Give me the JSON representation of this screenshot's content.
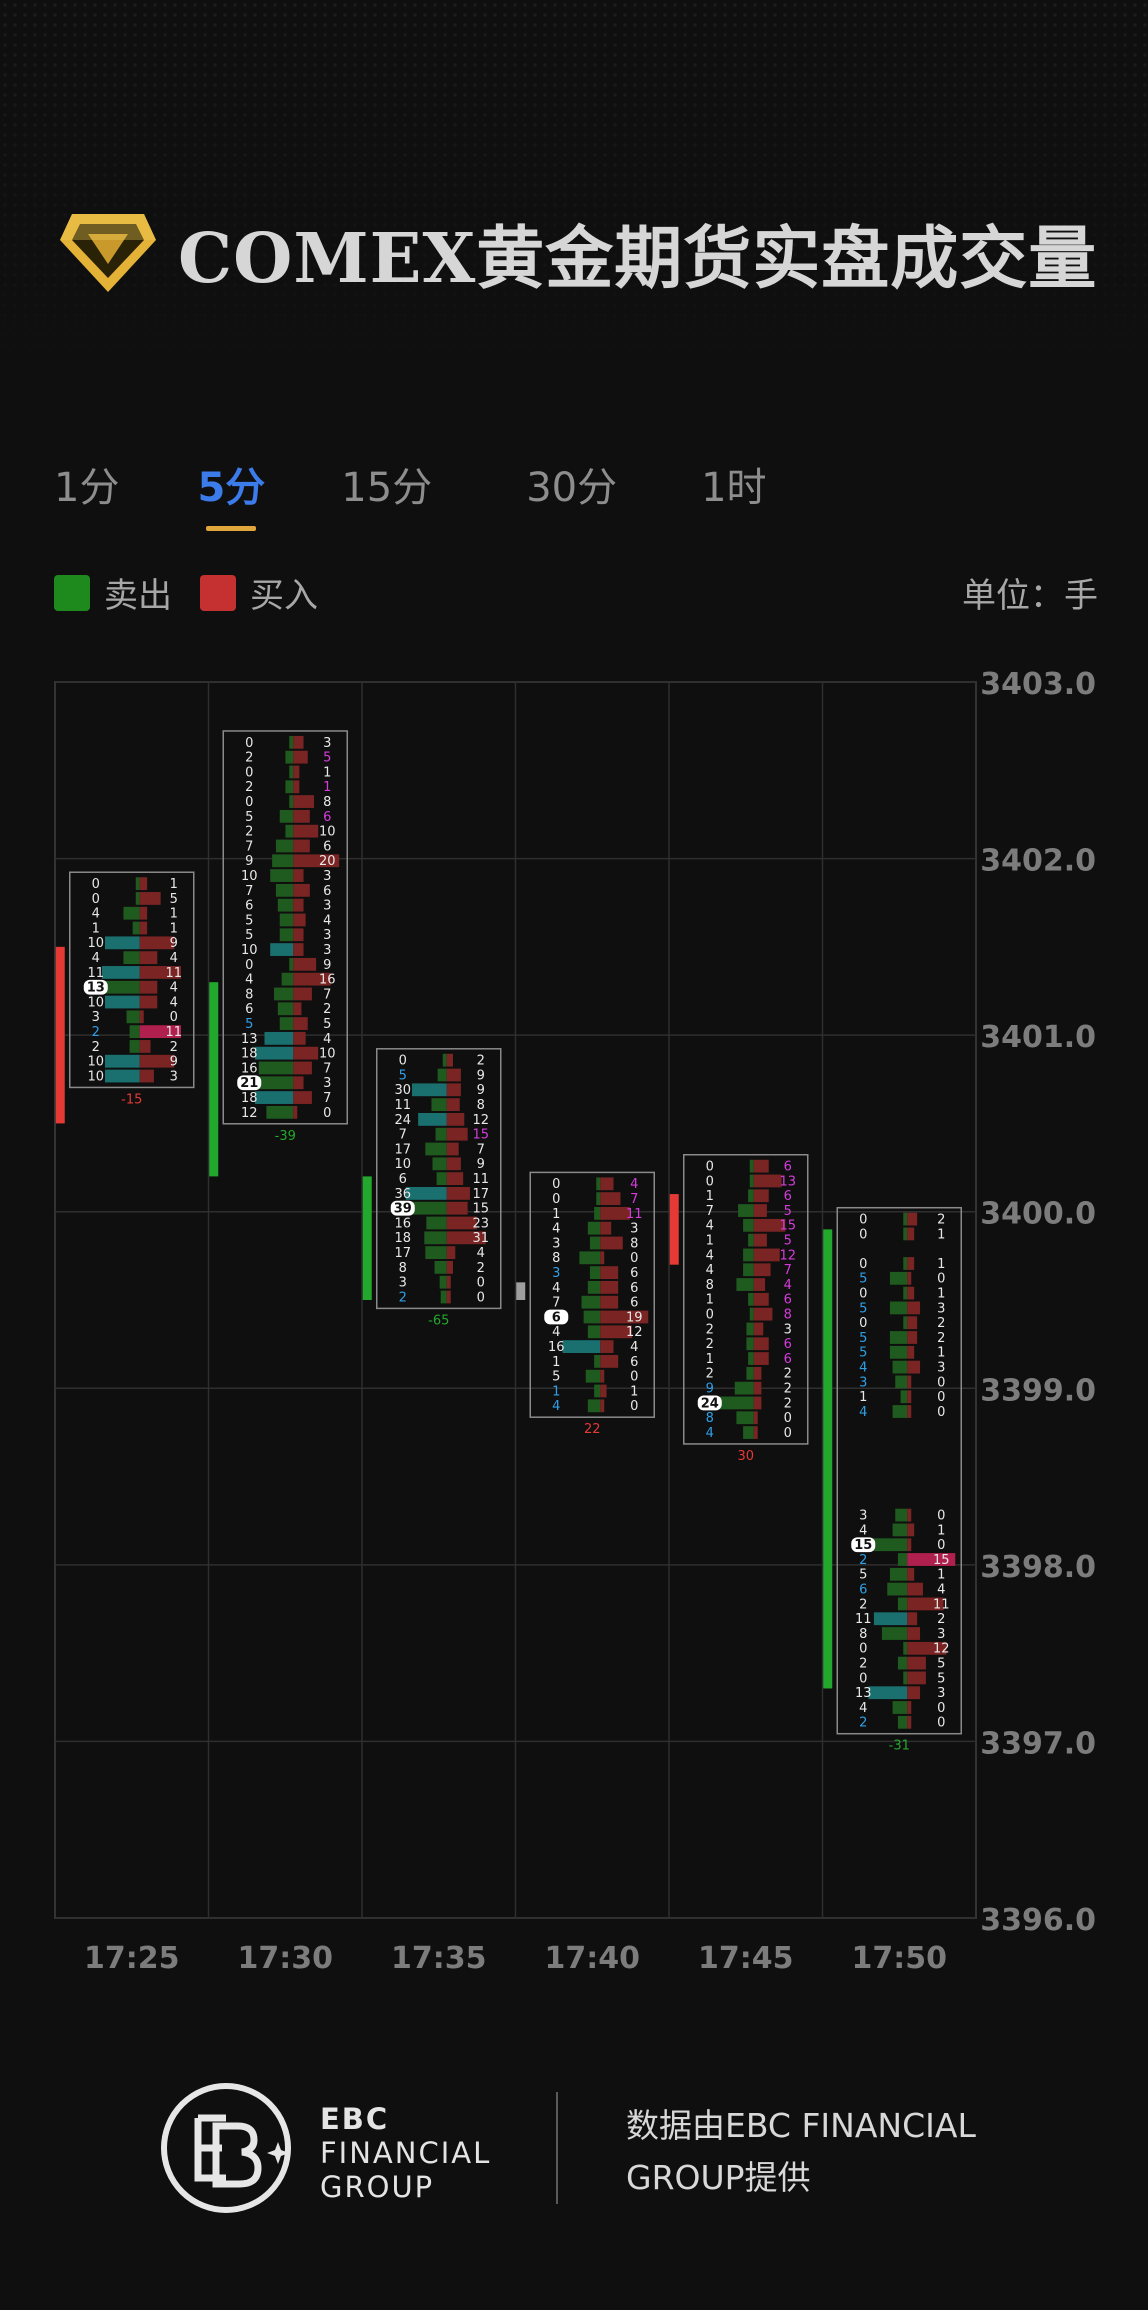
{
  "header": {
    "title": "COMEX黄金期货实盘成交量",
    "logo_icon": "gold-diamond-logo"
  },
  "tabs": [
    {
      "label": "1分",
      "active": false
    },
    {
      "label": "5分",
      "active": true
    },
    {
      "label": "15分",
      "active": false
    },
    {
      "label": "30分",
      "active": false
    },
    {
      "label": "1时",
      "active": false
    }
  ],
  "legend": {
    "sell": {
      "label": "卖出",
      "color": "#1e8a1e"
    },
    "buy": {
      "label": "买入",
      "color": "#c53030"
    },
    "unit": "单位：手"
  },
  "colors": {
    "sell_bar": "#1f5a1f",
    "buy_bar": "#7a2424",
    "highlight_blue": "#2f9fe8",
    "highlight_magenta": "#d63cdc",
    "highlight_teal": "#1a6f6f",
    "highlight_crimson": "#b0204e",
    "candle_up": "#22a82c",
    "candle_down": "#e53935",
    "candle_neutral": "#9e9e9e"
  },
  "chart_data": {
    "type": "footprint",
    "ylim": [
      3396.0,
      3403.0
    ],
    "y_ticks": [
      "3396.0",
      "3397.0",
      "3398.0",
      "3399.0",
      "3400.0",
      "3401.0",
      "3402.0",
      "3403.0"
    ],
    "x_ticks": [
      "17:25",
      "17:30",
      "17:35",
      "17:40",
      "17:45",
      "17:50"
    ],
    "bars": [
      {
        "time": "17:25",
        "delta": "-15",
        "delta_color": "down",
        "top_price": 3401.9,
        "candle": [
          3401.5,
          3400.5
        ],
        "candle_color": "down",
        "rows": [
          [
            0,
            "1",
            ""
          ],
          [
            0,
            "5",
            ""
          ],
          [
            4,
            "1",
            ""
          ],
          [
            1,
            "1",
            ""
          ],
          [
            "10",
            "9",
            "t"
          ],
          [
            4,
            "4",
            ""
          ],
          [
            "11",
            "11",
            "t"
          ],
          [
            "13",
            "4",
            "w"
          ],
          [
            "10",
            "4",
            "t"
          ],
          [
            3,
            "0",
            ""
          ],
          [
            "2",
            "11",
            "b"
          ],
          [
            2,
            "2",
            ""
          ],
          [
            "10",
            "9",
            "t"
          ],
          [
            "10",
            "3",
            "t"
          ]
        ]
      },
      {
        "time": "17:30",
        "delta": "-39",
        "delta_color": "up",
        "top_price": 3402.7,
        "candle": [
          3401.3,
          3400.2
        ],
        "candle_color": "up",
        "rows": [
          [
            0,
            "3",
            ""
          ],
          [
            2,
            "5",
            "m"
          ],
          [
            0,
            "1",
            ""
          ],
          [
            2,
            "1",
            "m"
          ],
          [
            0,
            "8",
            ""
          ],
          [
            5,
            "6",
            "m"
          ],
          [
            2,
            "10",
            ""
          ],
          [
            7,
            "6",
            ""
          ],
          [
            9,
            "20",
            ""
          ],
          [
            10,
            "3",
            ""
          ],
          [
            7,
            "6",
            ""
          ],
          [
            6,
            "3",
            ""
          ],
          [
            5,
            "4",
            ""
          ],
          [
            5,
            "3",
            ""
          ],
          [
            "10",
            "3",
            "t"
          ],
          [
            0,
            "9",
            ""
          ],
          [
            4,
            "16",
            ""
          ],
          [
            8,
            "7",
            ""
          ],
          [
            6,
            "2",
            ""
          ],
          [
            "5",
            "5",
            "b"
          ],
          [
            "13",
            "4",
            "t"
          ],
          [
            "18",
            "10",
            "t"
          ],
          [
            16,
            "7",
            ""
          ],
          [
            "21",
            "3",
            "w"
          ],
          [
            "18",
            "7",
            "t"
          ],
          [
            12,
            "0",
            ""
          ]
        ]
      },
      {
        "time": "17:35",
        "delta": "-65",
        "delta_color": "up",
        "top_price": 3400.9,
        "candle": [
          3400.2,
          3399.5
        ],
        "candle_color": "up",
        "rows": [
          [
            0,
            "2",
            ""
          ],
          [
            "5",
            "9",
            "b"
          ],
          [
            "30",
            "9",
            "t"
          ],
          [
            11,
            "8",
            ""
          ],
          [
            "24",
            "12",
            "t"
          ],
          [
            7,
            "15",
            "m"
          ],
          [
            17,
            "7",
            ""
          ],
          [
            10,
            "9",
            ""
          ],
          [
            6,
            "11",
            ""
          ],
          [
            "36",
            "17",
            "t"
          ],
          [
            "39",
            "15",
            "w"
          ],
          [
            16,
            "23",
            ""
          ],
          [
            18,
            "31",
            ""
          ],
          [
            17,
            "4",
            ""
          ],
          [
            8,
            "2",
            ""
          ],
          [
            3,
            "0",
            ""
          ],
          [
            "2",
            "0",
            "b"
          ]
        ]
      },
      {
        "time": "17:40",
        "delta": "22",
        "delta_color": "down",
        "top_price": 3400.2,
        "candle": [
          3399.6,
          3399.5
        ],
        "candle_color": "neutral",
        "rows": [
          [
            0,
            "4",
            ""
          ],
          [
            0,
            "7",
            ""
          ],
          [
            1,
            "11",
            ""
          ],
          [
            4,
            "3",
            ""
          ],
          [
            3,
            "8",
            ""
          ],
          [
            8,
            "0",
            ""
          ],
          [
            "3",
            "6",
            "b"
          ],
          [
            4,
            "6",
            ""
          ],
          [
            7,
            "6",
            ""
          ],
          [
            6,
            "19",
            "w"
          ],
          [
            4,
            "12",
            ""
          ],
          [
            "16",
            "4",
            "t"
          ],
          [
            1,
            "6",
            ""
          ],
          [
            5,
            "0",
            ""
          ],
          [
            "1",
            "1",
            "b"
          ],
          [
            "4",
            "0",
            "b"
          ]
        ]
      },
      {
        "time": "17:45",
        "delta": "30",
        "delta_color": "down",
        "top_price": 3400.3,
        "candle": [
          3400.1,
          3399.7
        ],
        "candle_color": "down",
        "rows": [
          [
            0,
            "6",
            ""
          ],
          [
            0,
            "13",
            ""
          ],
          [
            1,
            "6",
            ""
          ],
          [
            7,
            "5",
            ""
          ],
          [
            4,
            "15",
            ""
          ],
          [
            1,
            "5",
            ""
          ],
          [
            4,
            "12",
            ""
          ],
          [
            4,
            "7",
            ""
          ],
          [
            8,
            "4",
            ""
          ],
          [
            1,
            "6",
            ""
          ],
          [
            0,
            "8",
            ""
          ],
          [
            2,
            "3",
            ""
          ],
          [
            2,
            "6",
            ""
          ],
          [
            1,
            "6",
            ""
          ],
          [
            2,
            "2",
            ""
          ],
          [
            "9",
            "2",
            "b"
          ],
          [
            "24",
            "2",
            "w"
          ],
          [
            "8",
            "0",
            "b"
          ],
          [
            "4",
            "0",
            "b"
          ]
        ]
      },
      {
        "time": "17:50",
        "delta": "-31",
        "delta_color": "up",
        "top_price": 3400.0,
        "candle": [
          3399.9,
          3397.3
        ],
        "candle_color": "up",
        "rows": [
          [
            0,
            "2",
            ""
          ],
          [
            0,
            "1",
            ""
          ],
          [
            "",
            ""
          ],
          [
            0,
            "1",
            ""
          ],
          [
            "5",
            "0",
            "b"
          ],
          [
            0,
            "1",
            ""
          ],
          [
            "5",
            "3",
            "b"
          ],
          [
            0,
            "2",
            ""
          ],
          [
            "5",
            "2",
            "b"
          ],
          [
            "5",
            "1",
            "b"
          ],
          [
            "4",
            "3",
            "b"
          ],
          [
            "3",
            "0",
            "b"
          ],
          [
            1,
            "0",
            ""
          ],
          [
            "4",
            "0",
            "b"
          ],
          [
            "",
            ""
          ],
          [
            "",
            ""
          ],
          [
            "",
            ""
          ],
          [
            "",
            ""
          ],
          [
            "",
            ""
          ],
          [
            "",
            ""
          ],
          [
            3,
            "0",
            ""
          ],
          [
            4,
            "1",
            ""
          ],
          [
            "15",
            "0",
            "w"
          ],
          [
            "2",
            "15",
            "b"
          ],
          [
            5,
            "1",
            ""
          ],
          [
            "6",
            "4",
            "b"
          ],
          [
            2,
            "11",
            ""
          ],
          [
            "11",
            "2",
            "t"
          ],
          [
            8,
            "3",
            ""
          ],
          [
            0,
            "12",
            ""
          ],
          [
            2,
            "5",
            ""
          ],
          [
            0,
            "5",
            ""
          ],
          [
            "13",
            "3",
            "t"
          ],
          [
            4,
            "0",
            ""
          ],
          [
            "2",
            "0",
            "b"
          ]
        ]
      }
    ]
  },
  "footer": {
    "brand_line1": "EBC",
    "brand_line2": "FINANCIAL",
    "brand_line3": "GROUP",
    "note": "数据由EBC FINANCIAL GROUP提供"
  }
}
